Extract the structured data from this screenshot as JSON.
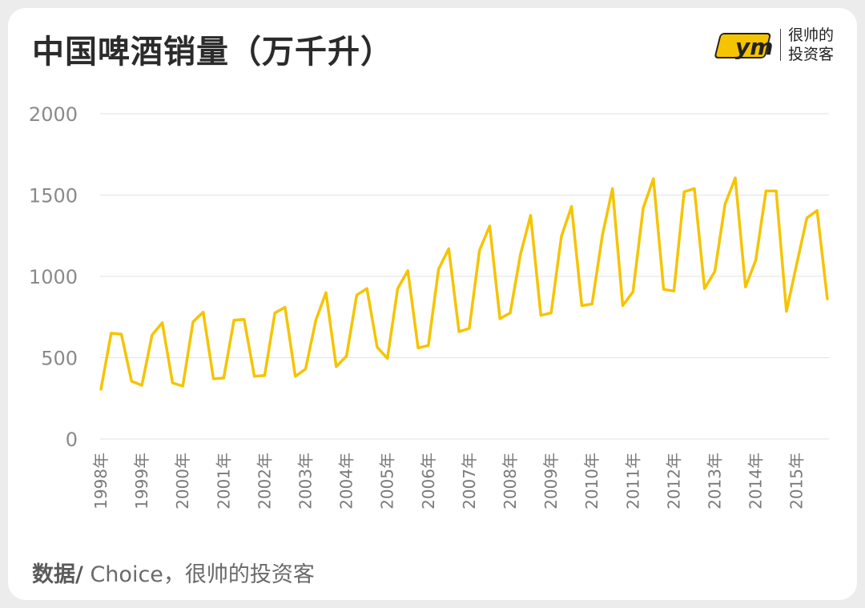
{
  "header": {
    "title": "中国啤酒销量（万千升）"
  },
  "logo": {
    "mark": "ym",
    "text_line1": "很帅的",
    "text_line2": "投资客"
  },
  "footer": {
    "source_label": "数据/",
    "source_text": " Choice，很帅的投资客"
  },
  "colors": {
    "line": "#f5c400",
    "grid": "#e2e2e2",
    "axis_text": "#8a8a8a"
  },
  "chart_data": {
    "type": "line",
    "title": "中国啤酒销量（万千升）",
    "xlabel": "",
    "ylabel": "",
    "ylim": [
      0,
      2000
    ],
    "yticks": [
      0,
      500,
      1000,
      1500,
      2000
    ],
    "grid": true,
    "xtick_labels": [
      "1998年",
      "1999年",
      "2000年",
      "2001年",
      "2002年",
      "2003年",
      "2004年",
      "2005年",
      "2006年",
      "2007年",
      "2008年",
      "2009年",
      "2010年",
      "2011年",
      "2012年",
      "2013年",
      "2014年",
      "2015年"
    ],
    "frequency": "quarterly",
    "series": [
      {
        "values": [
          305,
          650,
          645,
          355,
          330,
          640,
          715,
          345,
          325,
          720,
          780,
          370,
          375,
          730,
          735,
          385,
          390,
          775,
          810,
          385,
          430,
          730,
          900,
          445,
          510,
          885,
          925,
          565,
          495,
          925,
          1035,
          560,
          575,
          1045,
          1170,
          660,
          680,
          1160,
          1310,
          740,
          775,
          1135,
          1375,
          760,
          775,
          1245,
          1430,
          820,
          830,
          1250,
          1540,
          820,
          905,
          1420,
          1600,
          920,
          910,
          1520,
          1540,
          925,
          1030,
          1445,
          1605,
          935,
          1100,
          1525,
          1525,
          785,
          1075,
          1360,
          1405,
          860
        ]
      }
    ]
  }
}
